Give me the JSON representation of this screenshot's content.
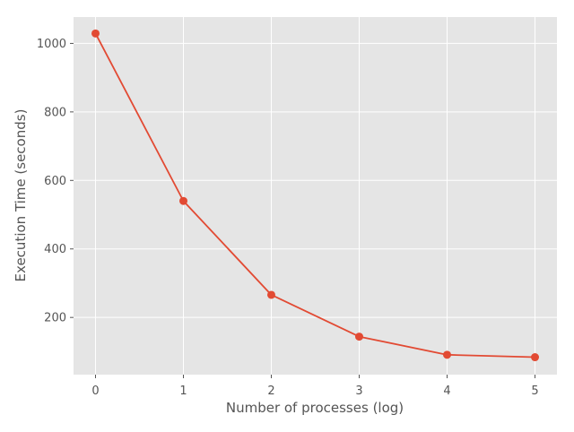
{
  "chart_data": {
    "type": "line",
    "title": "",
    "xlabel": "Number of processes (log)",
    "ylabel": "Execution Time (seconds)",
    "xlim": [
      -0.25,
      5.25
    ],
    "ylim": [
      33,
      1077
    ],
    "xticks": [
      0,
      1,
      2,
      3,
      4,
      5
    ],
    "yticks": [
      200,
      400,
      600,
      800,
      1000
    ],
    "grid": true,
    "series": [
      {
        "x": [
          0,
          1,
          2,
          3,
          4,
          5
        ],
        "y": [
          1029,
          540,
          266,
          144,
          91,
          84
        ],
        "color": "#E24A33",
        "marker": "circle"
      }
    ],
    "colors": {
      "plot_background": "#E5E5E5",
      "grid": "#FFFFFF",
      "tick_text": "#555555"
    }
  }
}
